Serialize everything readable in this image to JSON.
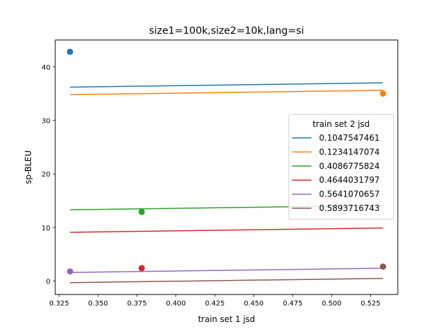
{
  "chart_data": {
    "type": "scatter",
    "title": "size1=100k,size2=10k,lang=si",
    "xlabel": "train set 1 jsd",
    "ylabel": "sp-BLEU",
    "xlim": [
      0.3225,
      0.5425
    ],
    "ylim": [
      -2.5,
      45.0
    ],
    "xticks": [
      0.325,
      0.35,
      0.375,
      0.4,
      0.425,
      0.45,
      0.475,
      0.5,
      0.525
    ],
    "xtick_labels": [
      "0.325",
      "0.350",
      "0.375",
      "0.400",
      "0.425",
      "0.450",
      "0.475",
      "0.500",
      "0.525"
    ],
    "yticks": [
      0,
      10,
      20,
      30,
      40
    ],
    "ytick_labels": [
      "0",
      "10",
      "20",
      "30",
      "40"
    ],
    "grid": false,
    "legend": {
      "title": "train set 2 jsd",
      "placement": "center-right"
    },
    "series": [
      {
        "name": "0.1047547461",
        "color": "#1f77b4",
        "points": [
          [
            0.332,
            42.8
          ]
        ],
        "fit": [
          [
            0.332,
            36.2
          ],
          [
            0.533,
            37.0
          ]
        ]
      },
      {
        "name": "0.1234147074",
        "color": "#ff7f0e",
        "points": [
          [
            0.533,
            35.0
          ]
        ],
        "fit": [
          [
            0.332,
            34.8
          ],
          [
            0.533,
            35.6
          ]
        ]
      },
      {
        "name": "0.4086775824",
        "color": "#2ca02c",
        "points": [
          [
            0.378,
            12.9
          ]
        ],
        "fit": [
          [
            0.332,
            13.3
          ],
          [
            0.533,
            14.1
          ]
        ]
      },
      {
        "name": "0.4644031797",
        "color": "#d62728",
        "points": [
          [
            0.378,
            2.4
          ]
        ],
        "fit": [
          [
            0.332,
            9.1
          ],
          [
            0.533,
            9.9
          ]
        ]
      },
      {
        "name": "0.5641070657",
        "color": "#9467bd",
        "points": [
          [
            0.332,
            1.8
          ]
        ],
        "fit": [
          [
            0.332,
            1.6
          ],
          [
            0.533,
            2.4
          ]
        ]
      },
      {
        "name": "0.5893716743",
        "color": "#8c564b",
        "points": [
          [
            0.533,
            2.7
          ]
        ],
        "fit": [
          [
            0.332,
            -0.3
          ],
          [
            0.533,
            0.5
          ]
        ]
      }
    ]
  }
}
